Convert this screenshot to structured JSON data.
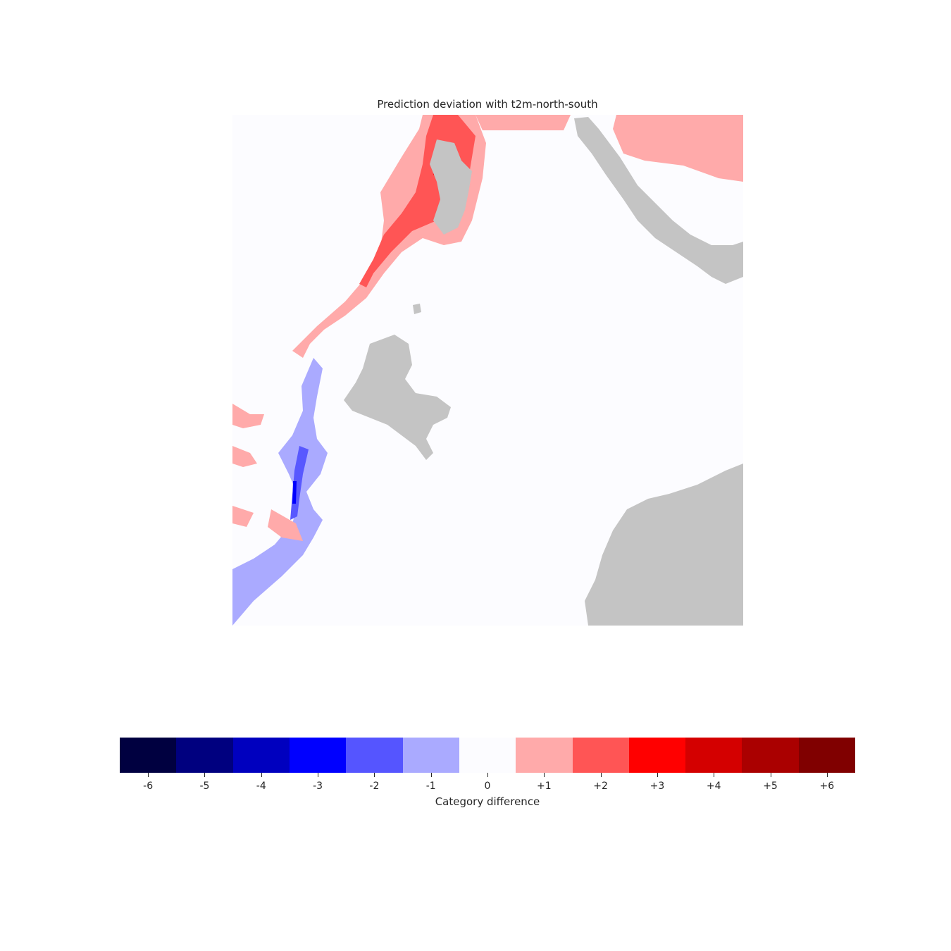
{
  "map": {
    "title": "Prediction deviation with t2m-north-south",
    "colors": {
      "ocean": "#fcfcff",
      "land": "#c4c4c4",
      "plus1": "#ffaaaa",
      "plus2": "#ff5555",
      "plus3": "#ff0000",
      "minus1": "#aaaaff",
      "minus2": "#5858ff",
      "minus3": "#0000ff"
    }
  },
  "colorbar": {
    "label": "Category difference",
    "bins": [
      {
        "label": "-6",
        "color": "#000040"
      },
      {
        "label": "-5",
        "color": "#00007f"
      },
      {
        "label": "-4",
        "color": "#0000bf"
      },
      {
        "label": "-3",
        "color": "#0000ff"
      },
      {
        "label": "-2",
        "color": "#5555ff"
      },
      {
        "label": "-1",
        "color": "#aaaaff"
      },
      {
        "label": "0",
        "color": "#fcfcff"
      },
      {
        "label": "+1",
        "color": "#ffaaaa"
      },
      {
        "label": "+2",
        "color": "#ff5555"
      },
      {
        "label": "+3",
        "color": "#ff0000"
      },
      {
        "label": "+4",
        "color": "#d40000"
      },
      {
        "label": "+5",
        "color": "#aa0000"
      },
      {
        "label": "+6",
        "color": "#800000"
      }
    ]
  }
}
